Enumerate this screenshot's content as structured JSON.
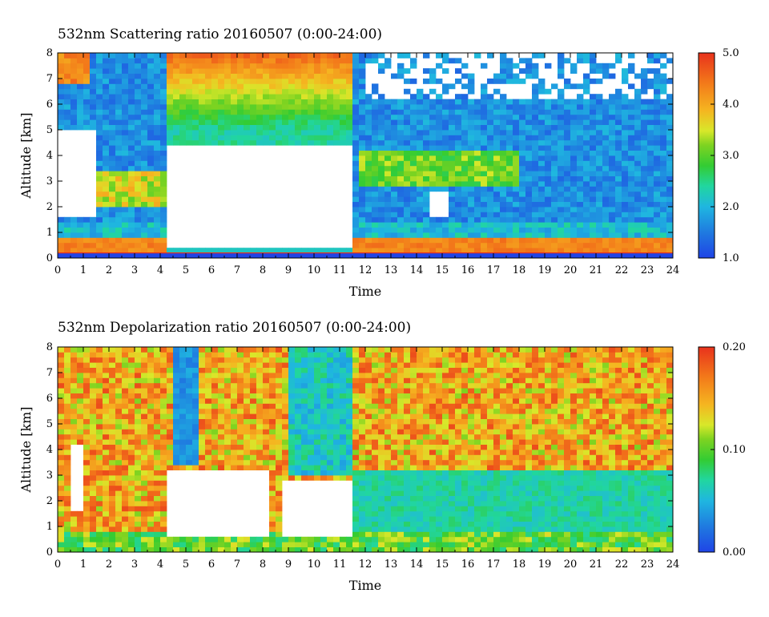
{
  "chart_data": [
    {
      "type": "heatmap",
      "title": "532nm Scattering ratio  20160507 (0:00-24:00)",
      "xlabel": "Time",
      "ylabel": "Altitude [km]",
      "xlim": [
        0,
        24
      ],
      "ylim": [
        0,
        8
      ],
      "x_ticks": [
        0,
        1,
        2,
        3,
        4,
        5,
        6,
        7,
        8,
        9,
        10,
        11,
        12,
        13,
        14,
        15,
        16,
        17,
        18,
        19,
        20,
        21,
        22,
        23,
        24
      ],
      "y_ticks": [
        0,
        1,
        2,
        3,
        4,
        5,
        6,
        7,
        8
      ],
      "colorbar": {
        "min": 1.0,
        "max": 5.0,
        "ticks": [
          "1.0",
          "2.0",
          "3.0",
          "4.0",
          "5.0"
        ]
      }
    },
    {
      "type": "heatmap",
      "title": "532nm Depolarization ratio  20160507 (0:00-24:00)",
      "xlabel": "Time",
      "ylabel": "Altitude [km]",
      "xlim": [
        0,
        24
      ],
      "ylim": [
        0,
        8
      ],
      "x_ticks": [
        0,
        1,
        2,
        3,
        4,
        5,
        6,
        7,
        8,
        9,
        10,
        11,
        12,
        13,
        14,
        15,
        16,
        17,
        18,
        19,
        20,
        21,
        22,
        23,
        24
      ],
      "y_ticks": [
        0,
        1,
        2,
        3,
        4,
        5,
        6,
        7,
        8
      ],
      "colorbar": {
        "min": 0.0,
        "max": 0.2,
        "ticks": [
          "0.00",
          "0.10",
          "0.20"
        ]
      }
    }
  ]
}
